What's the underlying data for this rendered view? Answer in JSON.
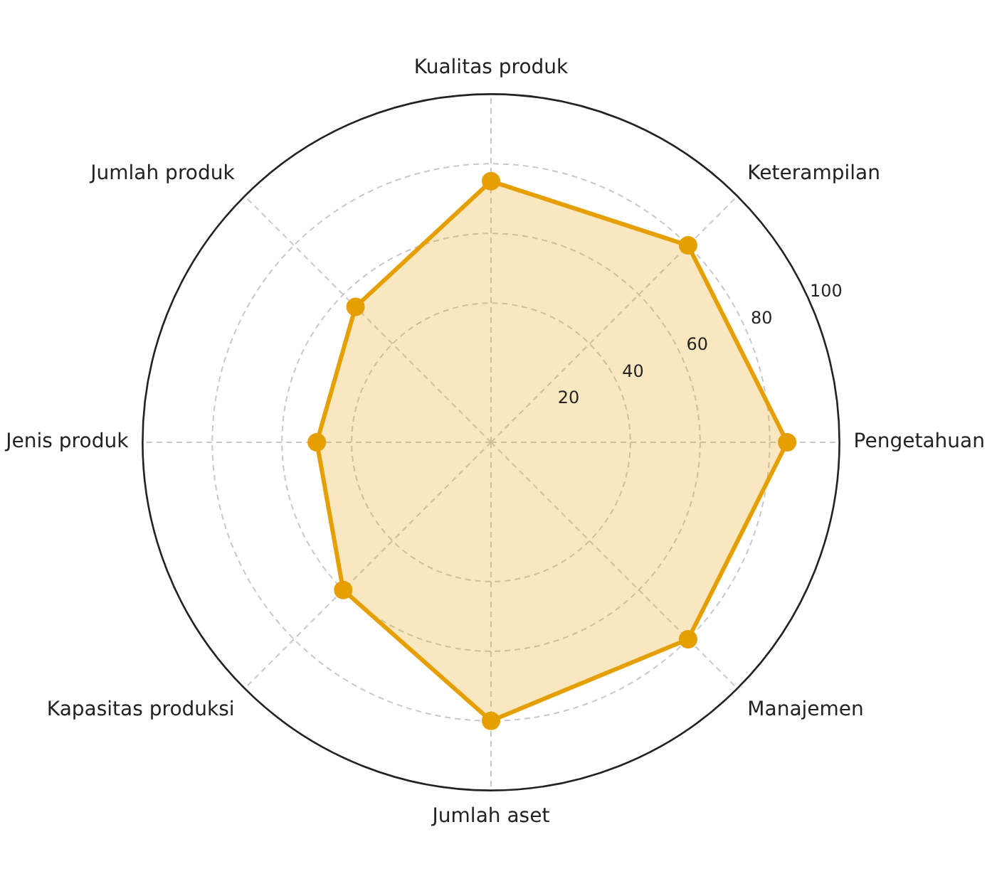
{
  "chart_data": {
    "type": "radar",
    "categories": [
      "Kualitas produk",
      "Keterampilan",
      "Pengetahuan",
      "Manajemen",
      "Jumlah aset",
      "Kapasitas produksi",
      "Jenis produk",
      "Jumlah produk"
    ],
    "series": [
      {
        "color": "#e69f00",
        "values": [
          75,
          80,
          85,
          80,
          80,
          60,
          50,
          55
        ]
      }
    ],
    "ylim": [
      0,
      100
    ],
    "yticks": [
      20,
      40,
      60,
      80,
      100
    ],
    "grid": true,
    "marker": "circle",
    "line_style": "solid",
    "legend": false
  }
}
